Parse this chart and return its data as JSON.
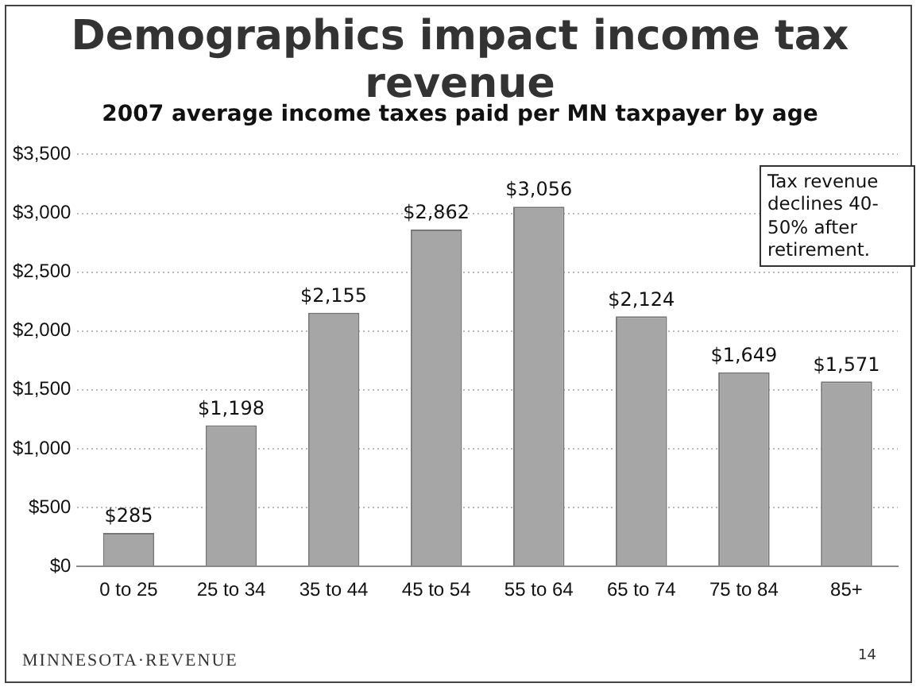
{
  "chart_data": {
    "type": "bar",
    "title": "Demographics impact income tax revenue",
    "subtitle": "2007 average income taxes paid per MN taxpayer by age",
    "categories": [
      "0 to 25",
      "25 to 34",
      "35 to 44",
      "45 to 54",
      "55 to 64",
      "65 to 74",
      "75 to 84",
      "85+"
    ],
    "values": [
      285,
      1198,
      2155,
      2862,
      3056,
      2124,
      1649,
      1571
    ],
    "value_labels": [
      "$285",
      "$1,198",
      "$2,155",
      "$2,862",
      "$3,056",
      "$2,124",
      "$1,649",
      "$1,571"
    ],
    "color": "#a6a6a6",
    "ylim": [
      0,
      3500
    ],
    "yticks": [
      {
        "value": 0,
        "label": "$0"
      },
      {
        "value": 500,
        "label": "$500"
      },
      {
        "value": 1000,
        "label": "$1,000"
      },
      {
        "value": 1500,
        "label": "$1,500"
      },
      {
        "value": 2000,
        "label": "$2,000"
      },
      {
        "value": 2500,
        "label": "$2,500"
      },
      {
        "value": 3000,
        "label": "$3,000"
      },
      {
        "value": 3500,
        "label": "$3,500"
      }
    ],
    "grid": "y",
    "annotations": [
      "Tax revenue declines 40-50% after retirement.",
      "MINNESOTA·REVENUE",
      "14"
    ]
  }
}
